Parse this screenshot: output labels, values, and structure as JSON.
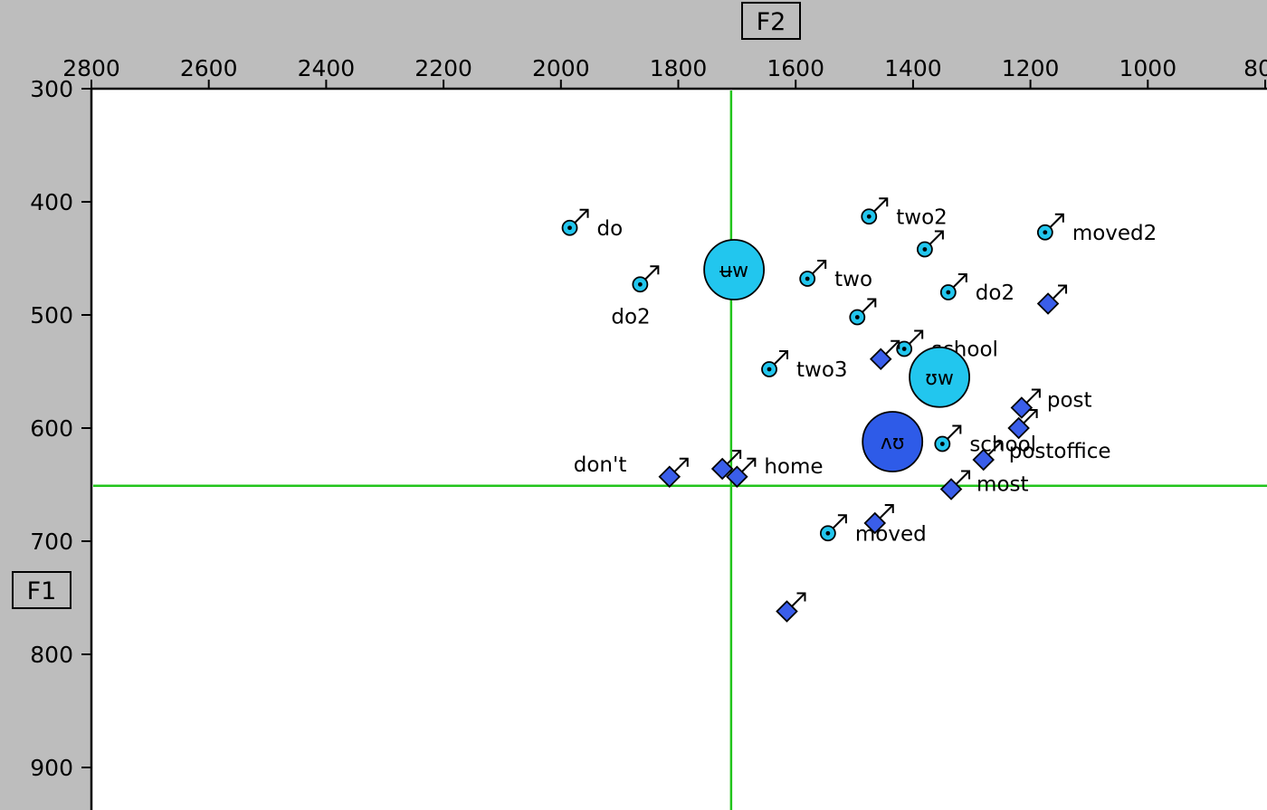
{
  "colors": {
    "background": "#bdbdbd",
    "plot_bg": "#ffffff",
    "crosshair": "#22c41c",
    "circle": "#22c6ee",
    "diamond": "#3a5eea",
    "centroid_dark": "#2e5be8"
  },
  "chart_data": {
    "type": "scatter",
    "x_axis": {
      "label": "F2",
      "range": [
        2800,
        800
      ],
      "reversed": true,
      "ticks": [
        2800,
        2600,
        2400,
        2200,
        2000,
        1800,
        1600,
        1400,
        1200,
        1000,
        800
      ]
    },
    "y_axis": {
      "label": "F1",
      "range": [
        300,
        900
      ],
      "reversed": true,
      "ticks": [
        300,
        400,
        500,
        600,
        700,
        800,
        900
      ]
    },
    "crosshair": {
      "f2": 1710,
      "f1": 651
    },
    "grid": false,
    "legend": "none",
    "series": [
      {
        "marker": "circle-male",
        "points": [
          {
            "f2": 1985,
            "f1": 423,
            "label": "do"
          },
          {
            "f2": 1865,
            "f1": 473,
            "label": "do2"
          },
          {
            "f2": 1475,
            "f1": 413,
            "label": "two2"
          },
          {
            "f2": 1175,
            "f1": 427,
            "label": "moved2"
          },
          {
            "f2": 1380,
            "f1": 442,
            "label": ""
          },
          {
            "f2": 1580,
            "f1": 468,
            "label": "two"
          },
          {
            "f2": 1340,
            "f1": 480,
            "label": "do2"
          },
          {
            "f2": 1495,
            "f1": 502,
            "label": ""
          },
          {
            "f2": 1415,
            "f1": 530,
            "label": "school"
          },
          {
            "f2": 1645,
            "f1": 548,
            "label": "two3"
          },
          {
            "f2": 1350,
            "f1": 614,
            "label": "school"
          },
          {
            "f2": 1545,
            "f1": 693,
            "label": "moved"
          }
        ]
      },
      {
        "marker": "diamond-male",
        "points": [
          {
            "f2": 1170,
            "f1": 490,
            "label": ""
          },
          {
            "f2": 1455,
            "f1": 539,
            "label": ""
          },
          {
            "f2": 1215,
            "f1": 582,
            "label": "post"
          },
          {
            "f2": 1220,
            "f1": 600,
            "label": ""
          },
          {
            "f2": 1280,
            "f1": 628,
            "label": "postoffice"
          },
          {
            "f2": 1815,
            "f1": 643,
            "label": "don't"
          },
          {
            "f2": 1725,
            "f1": 636,
            "label": ""
          },
          {
            "f2": 1700,
            "f1": 643,
            "label": "home"
          },
          {
            "f2": 1335,
            "f1": 654,
            "label": "most"
          },
          {
            "f2": 1465,
            "f1": 684,
            "label": ""
          },
          {
            "f2": 1615,
            "f1": 762,
            "label": ""
          }
        ]
      }
    ],
    "centroids": [
      {
        "f2": 1705,
        "f1": 460,
        "label": "ʉw",
        "style": "light"
      },
      {
        "f2": 1355,
        "f1": 555,
        "label": "ʊw",
        "style": "light"
      },
      {
        "f2": 1435,
        "f1": 612,
        "label": "ʌʊ",
        "style": "dark"
      }
    ]
  }
}
